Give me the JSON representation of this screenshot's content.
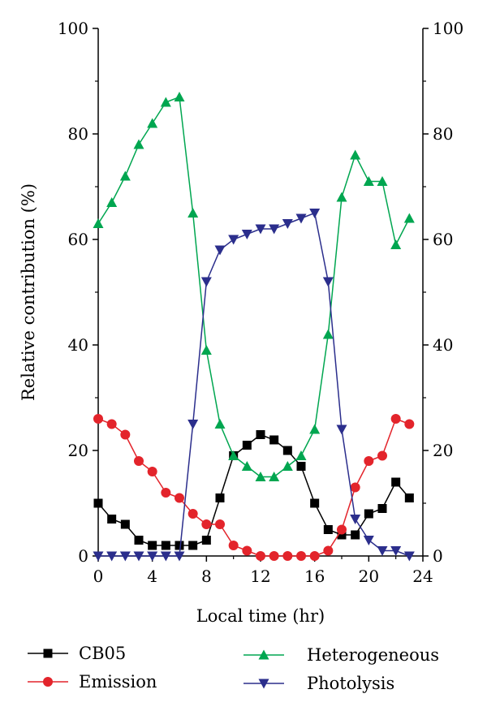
{
  "chart_data": {
    "type": "line",
    "title": "",
    "xlabel": "Local time (hr)",
    "ylabel": "Relative contribution (%)",
    "xlim": [
      0,
      24
    ],
    "ylim": [
      0,
      100
    ],
    "xticks": [
      0,
      4,
      8,
      12,
      16,
      20,
      24
    ],
    "yticks": [
      0,
      20,
      40,
      60,
      80,
      100
    ],
    "x": [
      0,
      1,
      2,
      3,
      4,
      5,
      6,
      7,
      8,
      9,
      10,
      11,
      12,
      13,
      14,
      15,
      16,
      17,
      18,
      19,
      20,
      21,
      22,
      23
    ],
    "grid": false,
    "legend_position": "bottom",
    "series": [
      {
        "name": "CB05",
        "color": "#000000",
        "marker": "square",
        "values": [
          10,
          7,
          6,
          3,
          2,
          2,
          2,
          2,
          3,
          11,
          19,
          21,
          23,
          22,
          20,
          17,
          10,
          5,
          4,
          4,
          8,
          9,
          14,
          11
        ]
      },
      {
        "name": "Emission",
        "color": "#e3242b",
        "marker": "circle",
        "values": [
          26,
          25,
          23,
          18,
          16,
          12,
          11,
          8,
          6,
          6,
          2,
          1,
          0,
          0,
          0,
          0,
          0,
          1,
          5,
          13,
          18,
          19,
          26,
          25
        ]
      },
      {
        "name": "Heterogeneous",
        "color": "#00a650",
        "marker": "triangle-up",
        "values": [
          63,
          67,
          72,
          78,
          82,
          86,
          87,
          65,
          39,
          25,
          19,
          17,
          15,
          15,
          17,
          19,
          24,
          42,
          68,
          76,
          71,
          71,
          59,
          64
        ]
      },
      {
        "name": "Photolysis",
        "color": "#2b2e8c",
        "marker": "triangle-down",
        "values": [
          0,
          0,
          0,
          0,
          0,
          0,
          0,
          25,
          52,
          58,
          60,
          61,
          62,
          62,
          63,
          64,
          65,
          52,
          24,
          7,
          3,
          1,
          1,
          0
        ]
      }
    ]
  }
}
